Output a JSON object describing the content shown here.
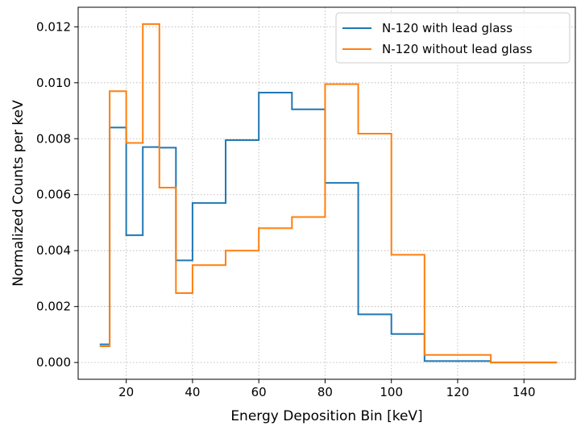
{
  "chart_data": {
    "type": "line",
    "style": "step-histogram",
    "xlabel": "Energy Deposition Bin [keV]",
    "ylabel": "Normalized Counts per keV",
    "xlim": [
      5.5,
      155.5
    ],
    "ylim": [
      -0.0006,
      0.0127
    ],
    "xticks": [
      20,
      40,
      60,
      80,
      100,
      120,
      140
    ],
    "xtick_labels": [
      "20",
      "40",
      "60",
      "80",
      "100",
      "120",
      "140"
    ],
    "yticks": [
      0,
      0.002,
      0.004,
      0.006,
      0.008,
      0.01,
      0.012
    ],
    "ytick_labels": [
      "0.000",
      "0.002",
      "0.004",
      "0.006",
      "0.008",
      "0.010",
      "0.012"
    ],
    "grid": true,
    "legend_position": "top-right",
    "bin_edges": [
      12,
      15,
      20,
      25,
      30,
      35,
      40,
      50,
      60,
      70,
      80,
      90,
      100,
      110,
      120,
      130,
      140,
      150
    ],
    "series": [
      {
        "name": "N-120 with lead glass",
        "color": "#1f77b4",
        "values": [
          0.00065,
          0.0084,
          0.00455,
          0.0077,
          0.00768,
          0.00365,
          0.0057,
          0.00795,
          0.00965,
          0.00905,
          0.00642,
          0.00172,
          0.00102,
          5e-05,
          5e-05,
          0.0,
          0.0
        ]
      },
      {
        "name": "N-120 without lead glass",
        "color": "#ff7f0e",
        "values": [
          0.00058,
          0.0097,
          0.00785,
          0.0121,
          0.00625,
          0.00248,
          0.00348,
          0.004,
          0.0048,
          0.0052,
          0.00995,
          0.00818,
          0.00385,
          0.00027,
          0.00027,
          0.0,
          0.0
        ]
      }
    ]
  }
}
